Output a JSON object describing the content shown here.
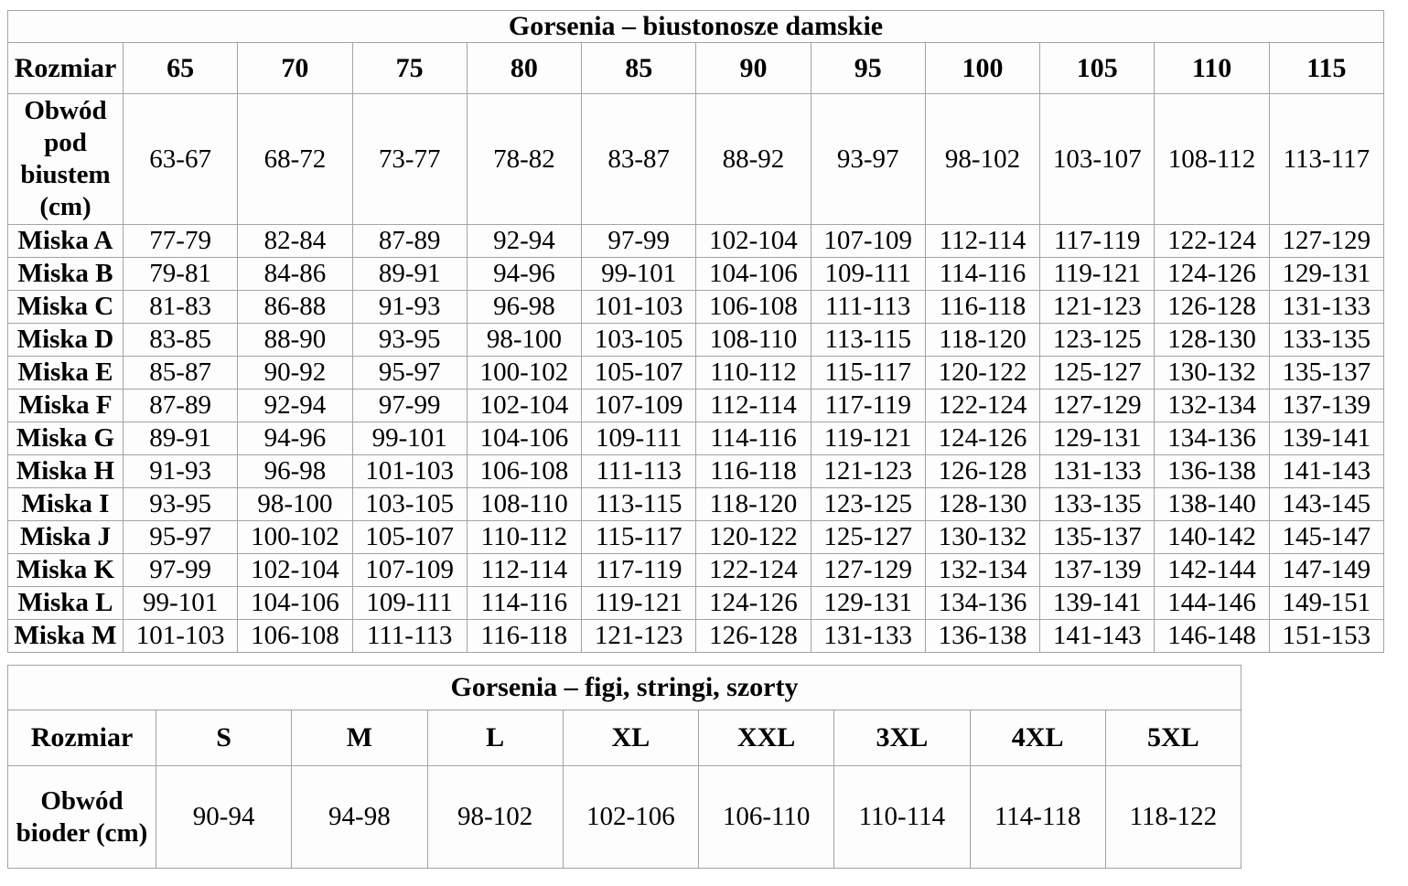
{
  "page": {
    "background": "#ffffff",
    "text_color": "#000000",
    "border_color": "#a3a3a3"
  },
  "tables": [
    {
      "title": "Gorsenia – biustonosze damskie",
      "header": [
        "Rozmiar",
        "65",
        "70",
        "75",
        "80",
        "85",
        "90",
        "95",
        "100",
        "105",
        "110",
        "115"
      ],
      "rows": [
        {
          "label": "Obwód pod biustem (cm)",
          "values": [
            "63-67",
            "68-72",
            "73-77",
            "78-82",
            "83-87",
            "88-92",
            "93-97",
            "98-102",
            "103-107",
            "108-112",
            "113-117"
          ]
        },
        {
          "label": "Miska A",
          "values": [
            "77-79",
            "82-84",
            "87-89",
            "92-94",
            "97-99",
            "102-104",
            "107-109",
            "112-114",
            "117-119",
            "122-124",
            "127-129"
          ]
        },
        {
          "label": "Miska B",
          "values": [
            "79-81",
            "84-86",
            "89-91",
            "94-96",
            "99-101",
            "104-106",
            "109-111",
            "114-116",
            "119-121",
            "124-126",
            "129-131"
          ]
        },
        {
          "label": "Miska C",
          "values": [
            "81-83",
            "86-88",
            "91-93",
            "96-98",
            "101-103",
            "106-108",
            "111-113",
            "116-118",
            "121-123",
            "126-128",
            "131-133"
          ]
        },
        {
          "label": "Miska D",
          "values": [
            "83-85",
            "88-90",
            "93-95",
            "98-100",
            "103-105",
            "108-110",
            "113-115",
            "118-120",
            "123-125",
            "128-130",
            "133-135"
          ]
        },
        {
          "label": "Miska E",
          "values": [
            "85-87",
            "90-92",
            "95-97",
            "100-102",
            "105-107",
            "110-112",
            "115-117",
            "120-122",
            "125-127",
            "130-132",
            "135-137"
          ]
        },
        {
          "label": "Miska F",
          "values": [
            "87-89",
            "92-94",
            "97-99",
            "102-104",
            "107-109",
            "112-114",
            "117-119",
            "122-124",
            "127-129",
            "132-134",
            "137-139"
          ]
        },
        {
          "label": "Miska G",
          "values": [
            "89-91",
            "94-96",
            "99-101",
            "104-106",
            "109-111",
            "114-116",
            "119-121",
            "124-126",
            "129-131",
            "134-136",
            "139-141"
          ]
        },
        {
          "label": "Miska H",
          "values": [
            "91-93",
            "96-98",
            "101-103",
            "106-108",
            "111-113",
            "116-118",
            "121-123",
            "126-128",
            "131-133",
            "136-138",
            "141-143"
          ]
        },
        {
          "label": "Miska I",
          "values": [
            "93-95",
            "98-100",
            "103-105",
            "108-110",
            "113-115",
            "118-120",
            "123-125",
            "128-130",
            "133-135",
            "138-140",
            "143-145"
          ]
        },
        {
          "label": "Miska J",
          "values": [
            "95-97",
            "100-102",
            "105-107",
            "110-112",
            "115-117",
            "120-122",
            "125-127",
            "130-132",
            "135-137",
            "140-142",
            "145-147"
          ]
        },
        {
          "label": "Miska K",
          "values": [
            "97-99",
            "102-104",
            "107-109",
            "112-114",
            "117-119",
            "122-124",
            "127-129",
            "132-134",
            "137-139",
            "142-144",
            "147-149"
          ]
        },
        {
          "label": "Miska L",
          "values": [
            "99-101",
            "104-106",
            "109-111",
            "114-116",
            "119-121",
            "124-126",
            "129-131",
            "134-136",
            "139-141",
            "144-146",
            "149-151"
          ]
        },
        {
          "label": "Miska M",
          "values": [
            "101-103",
            "106-108",
            "111-113",
            "116-118",
            "121-123",
            "126-128",
            "131-133",
            "136-138",
            "141-143",
            "146-148",
            "151-153"
          ]
        }
      ]
    },
    {
      "title": "Gorsenia – figi, stringi, szorty",
      "header": [
        "Rozmiar",
        "S",
        "M",
        "L",
        "XL",
        "XXL",
        "3XL",
        "4XL",
        "5XL"
      ],
      "rows": [
        {
          "label": "Obwód bioder (cm)",
          "values": [
            "90-94",
            "94-98",
            "98-102",
            "102-106",
            "106-110",
            "110-114",
            "114-118",
            "118-122"
          ]
        }
      ]
    }
  ]
}
